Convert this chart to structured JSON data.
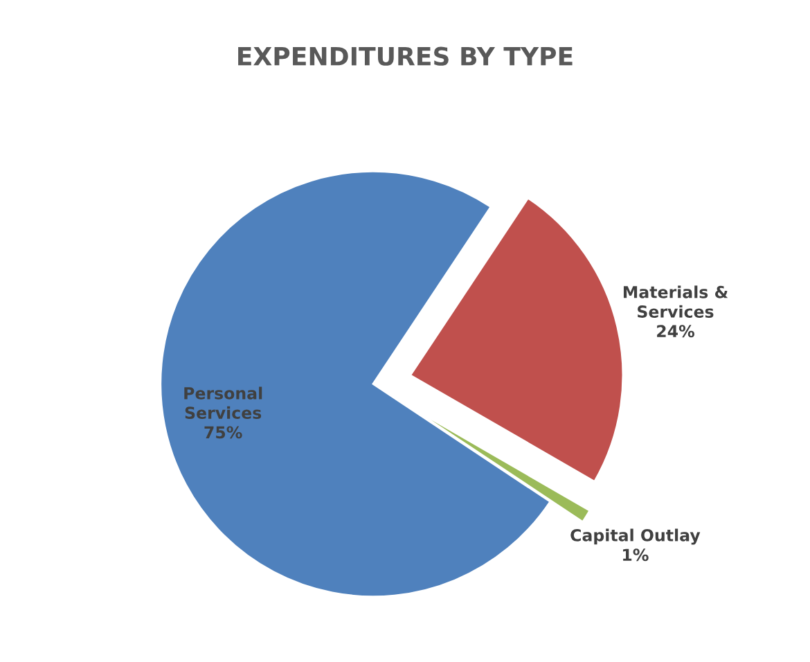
{
  "chart_data": {
    "type": "pie",
    "title": "EXPENDITURES BY TYPE",
    "categories": [
      "Personal Services",
      "Materials & Services",
      "Capital Outlay"
    ],
    "values": [
      75,
      24,
      1
    ],
    "value_labels": [
      "75%",
      "24%",
      "1%"
    ],
    "colors": [
      "#4f81bd",
      "#c0504d",
      "#9bbb59"
    ]
  }
}
